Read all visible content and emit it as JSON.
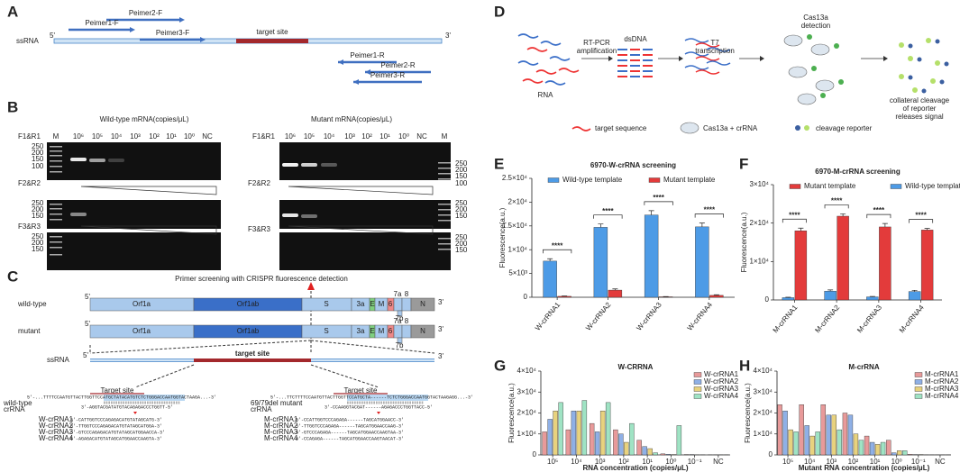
{
  "panel_labels": [
    "A",
    "B",
    "C",
    "D",
    "E",
    "F",
    "G",
    "H"
  ],
  "panel_a": {
    "strand": "ssRNA",
    "end5": "5'",
    "end3": "3'",
    "target": "target site",
    "primers": [
      "Peimer2-F",
      "Peimer1-F",
      "Peimer3-F",
      "Peimer1-R",
      "Peimer2-R",
      "Peimer3-R"
    ]
  },
  "panel_b": {
    "pairs": [
      "F1&R1",
      "F2&R2",
      "F3&R3"
    ],
    "wild_title": "Wild-type mRNA(copies/μL)",
    "mutant_title": "Mutant mRNA(copies/μL)",
    "marker": "M",
    "lanes": [
      "10⁶",
      "10⁵",
      "10⁴",
      "10³",
      "10²",
      "10¹",
      "10⁰",
      "NC"
    ],
    "sizes": [
      "250",
      "200",
      "150",
      "100"
    ]
  },
  "panel_c": {
    "title": "Primer screening with CRISPR fluorescence detection",
    "rows": [
      "wild-type",
      "mutant"
    ],
    "genes": [
      "Orf1a",
      "Orf1ab",
      "S",
      "3a",
      "E",
      "M",
      "6",
      "7a",
      "8",
      "7b",
      "N"
    ],
    "end5": "5'",
    "end3": "3'",
    "strand": "ssRNA",
    "target": "target site",
    "wt": {
      "label": [
        "wild-type",
        "crRNA"
      ],
      "target_label": "Target site",
      "seq": "5'-...TTTTCCAATGTTACTTGGTTCCATGCTATACATGTCTCTGGGACCAATGGTACTAAGA...-3'",
      "comp": "3'-AGGTACGATATGTACAGAGACCCTGGTT-5'",
      "crrnas": [
        {
          "name": "W-crRNA1",
          "seq": "5'-CATTGGTCCCAGAGACATGTATAGCATG-3'"
        },
        {
          "name": "W-crRNA2",
          "seq": "5'-TTGGTCCCAGAGACATGTATAGCATGGA-3'"
        },
        {
          "name": "W-crRNA3",
          "seq": "5'-GTCCCAGAGACATGTATAGCATGGAACCA-3'"
        },
        {
          "name": "W-crRNA4",
          "seq": "5'-AGAGACATGTATAGCATGGAACCAAGTA-3'"
        }
      ]
    },
    "mut": {
      "label": [
        "69/79del mutant",
        "crRNA"
      ],
      "target_label": "Target site",
      "seq": "5'-...TTCTTTTCCAATGTTACTTGGTTCCATGCTA------TCTCTGGGACCAATGGTACTAAGAGG...-3'",
      "comp": "3'-CCAAGGTACGAT------AGAGACCCTGGTTACC-5'",
      "crrnas": [
        {
          "name": "M-crRNA1",
          "seq": "5'-CCATTGGTCCCAGAGA------TAGCATGGAACC-3'"
        },
        {
          "name": "M-crRNA2",
          "seq": "5'-TTGGTCCCAGAGA------TAGCATGGAACCAAG-3'"
        },
        {
          "name": "M-crRNA3",
          "seq": "5'-GTCCCAGAGA------TAGCATGGAACCAAGTAA-3'"
        },
        {
          "name": "M-crRNA4",
          "seq": "5'-CCAGAGA------TAGCATGGAACCAAGTAACAT-3'"
        }
      ]
    }
  },
  "panel_d": {
    "rna": "RNA",
    "rtpcr": [
      "RT-PCR",
      "amplification"
    ],
    "dsdna": "dsDNA",
    "t7": [
      "T7",
      "transcription"
    ],
    "cas": [
      "Cas13a",
      "detection"
    ],
    "caption": [
      "collateral cleavage",
      "of reporter",
      "releases signal"
    ],
    "legend": [
      "target sequence",
      "Cas13a + crRNA",
      "cleavage reporter"
    ]
  },
  "chart_data": [
    {
      "type": "bar",
      "title": "6970-W-crRNA screening",
      "ylabel": "Fluorescence(a.u.)",
      "categories": [
        "W-crRNA1",
        "W-crRNA2",
        "W-crRNA3",
        "W-crRNA4"
      ],
      "series": [
        {
          "name": "Wild-type template",
          "color": "#4d9be6",
          "values": [
            7600,
            14700,
            17300,
            14800
          ],
          "errors": [
            500,
            700,
            900,
            800
          ]
        },
        {
          "name": "Mutant template",
          "color": "#e33b3b",
          "values": [
            200,
            1500,
            100,
            400
          ],
          "errors": [
            60,
            250,
            40,
            120
          ]
        }
      ],
      "annotations": [
        "****",
        "****",
        "****",
        "****"
      ],
      "ylim": [
        0,
        25000
      ],
      "yticks": [
        0,
        {
          "value": 5000,
          "label": "5×10³"
        },
        {
          "value": 10000,
          "label": "1×10⁴"
        },
        {
          "value": 15000,
          "label": "1.5×10⁴"
        },
        {
          "value": 20000,
          "label": "2×10⁴"
        },
        {
          "value": 25000,
          "label": "2.5×10⁴"
        }
      ]
    },
    {
      "type": "bar",
      "title": "6970-M-crRNA screening",
      "ylabel": "Fluorescence(a.u.)",
      "categories": [
        "M-crRNA1",
        "M-crRNA2",
        "M-crRNA3",
        "M-crRNA4"
      ],
      "series": [
        {
          "name": "Mutant template",
          "color": "#e33b3b",
          "values": [
            18000,
            21800,
            19000,
            18200
          ],
          "errors": [
            700,
            600,
            900,
            400
          ]
        },
        {
          "name": "Wild-type template",
          "color": "#4d9be6",
          "values": [
            600,
            2300,
            800,
            2200
          ],
          "errors": [
            100,
            300,
            120,
            300
          ]
        }
      ],
      "annotations": [
        "****",
        "****",
        "****",
        "****"
      ],
      "ylim": [
        0,
        30000
      ],
      "yticks": [
        0,
        {
          "value": 10000,
          "label": "1×10⁴"
        },
        {
          "value": 20000,
          "label": "2×10⁴"
        },
        {
          "value": 30000,
          "label": "3×10⁴"
        }
      ]
    },
    {
      "type": "bar",
      "title": "W-CRRNA",
      "ylabel": "Fluorescence(a.u.)",
      "xlabel": "RNA concentration (copies/μL)",
      "categories": [
        "10⁵",
        "10⁴",
        "10³",
        "10²",
        "10¹",
        "10⁰",
        "10⁻¹",
        "NC"
      ],
      "series": [
        {
          "name": "W-crRNA1",
          "color": "#e89a9a",
          "values": [
            11000,
            12000,
            15000,
            12000,
            7000,
            500,
            200,
            100
          ]
        },
        {
          "name": "W-crRNA2",
          "color": "#8fb0e6",
          "values": [
            17000,
            21000,
            11000,
            10000,
            4000,
            300,
            200,
            100
          ]
        },
        {
          "name": "W-crRNA3",
          "color": "#e8d27e",
          "values": [
            21000,
            21000,
            21000,
            6000,
            3000,
            200,
            100,
            100
          ]
        },
        {
          "name": "W-crRNA4",
          "color": "#9fe3c4",
          "values": [
            25000,
            26000,
            25000,
            15000,
            1000,
            14000,
            100,
            100
          ]
        }
      ],
      "ylim": [
        0,
        40000
      ],
      "yticks": [
        0,
        {
          "value": 10000,
          "label": "1×10⁴"
        },
        {
          "value": 20000,
          "label": "2×10⁴"
        },
        {
          "value": 30000,
          "label": "3×10⁴"
        },
        {
          "value": 40000,
          "label": "4×10⁴"
        }
      ]
    },
    {
      "type": "bar",
      "title": "M-crRNA",
      "ylabel": "Fluorescence(a.u.)",
      "xlabel": "Mutant RNA concentration (copies/μL)",
      "categories": [
        "10⁵",
        "10⁴",
        "10³",
        "10²",
        "10¹",
        "10⁰",
        "10⁻¹",
        "NC"
      ],
      "series": [
        {
          "name": "M-crRNA1",
          "color": "#e89a9a",
          "values": [
            24000,
            24000,
            24000,
            20000,
            9000,
            7000,
            300,
            100
          ]
        },
        {
          "name": "M-crRNA2",
          "color": "#8fb0e6",
          "values": [
            21000,
            14000,
            19000,
            19000,
            6000,
            1000,
            200,
            100
          ]
        },
        {
          "name": "M-crRNA3",
          "color": "#e8d27e",
          "values": [
            12000,
            9000,
            19000,
            10000,
            5000,
            2000,
            200,
            100
          ]
        },
        {
          "name": "M-crRNA4",
          "color": "#9fe3c4",
          "values": [
            11000,
            11000,
            12000,
            7000,
            6000,
            2000,
            100,
            100
          ]
        }
      ],
      "ylim": [
        0,
        40000
      ],
      "yticks": [
        0,
        {
          "value": 10000,
          "label": "1×10⁴"
        },
        {
          "value": 20000,
          "label": "2×10⁴"
        },
        {
          "value": 30000,
          "label": "3×10⁴"
        },
        {
          "value": 40000,
          "label": "4×10⁴"
        }
      ]
    }
  ]
}
